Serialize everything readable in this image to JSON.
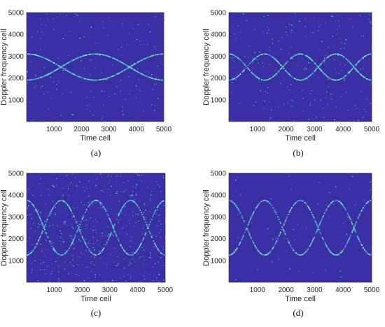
{
  "chart_data": [
    {
      "type": "heatmap",
      "panel_label": "(a)",
      "xlabel": "Time cell",
      "ylabel": "Doppler frequency cell",
      "xlim": [
        0,
        5000
      ],
      "ylim": [
        0,
        5000
      ],
      "xticks": [
        "1000",
        "2000",
        "3000",
        "4000",
        "5000"
      ],
      "yticks": [
        "1000",
        "2000",
        "3000",
        "4000",
        "5000"
      ],
      "background": "#3b2fa6",
      "highlight": "#5cf0c8",
      "curves": [
        {
          "center": 2500,
          "amplitude": 600,
          "period": 5000,
          "phase": 0
        },
        {
          "center": 2500,
          "amplitude": 600,
          "period": 5000,
          "phase": 2500
        }
      ],
      "noise_density": 0.35
    },
    {
      "type": "heatmap",
      "panel_label": "(b)",
      "xlabel": "Time cell",
      "ylabel": "Doppler frequency cell",
      "xlim": [
        0,
        5000
      ],
      "ylim": [
        0,
        5000
      ],
      "xticks": [
        "1000",
        "2000",
        "3000",
        "4000",
        "5000"
      ],
      "yticks": [
        "1000",
        "2000",
        "3000",
        "4000",
        "5000"
      ],
      "background": "#3b2fa6",
      "highlight": "#5cf0c8",
      "curves": [
        {
          "center": 2500,
          "amplitude": 600,
          "period": 2500,
          "phase": 0
        },
        {
          "center": 2500,
          "amplitude": 600,
          "period": 2500,
          "phase": 1250
        }
      ],
      "noise_density": 0.5
    },
    {
      "type": "heatmap",
      "panel_label": "(c)",
      "xlabel": "Time cell",
      "ylabel": "Doppler frequency cell",
      "xlim": [
        0,
        5000
      ],
      "ylim": [
        0,
        5000
      ],
      "xticks": [
        "1000",
        "2000",
        "3000",
        "4000",
        "5000"
      ],
      "yticks": [
        "1000",
        "2000",
        "3000",
        "4000",
        "5000"
      ],
      "background": "#3b2fa6",
      "highlight": "#5cf0c8",
      "curves": [
        {
          "center": 2500,
          "amplitude": 1250,
          "period": 2500,
          "phase": 0
        },
        {
          "center": 2500,
          "amplitude": 1250,
          "period": 2500,
          "phase": 1250
        }
      ],
      "noise_density": 1.0
    },
    {
      "type": "heatmap",
      "panel_label": "(d)",
      "xlabel": "Time cell",
      "ylabel": "Doppler frequency cell",
      "xlim": [
        0,
        5000
      ],
      "ylim": [
        0,
        5000
      ],
      "xticks": [
        "1000",
        "2000",
        "3000",
        "4000",
        "5000"
      ],
      "yticks": [
        "1000",
        "2000",
        "3000",
        "4000",
        "5000"
      ],
      "background": "#3b2fa6",
      "highlight": "#5cf0c8",
      "curves": [
        {
          "center": 2500,
          "amplitude": 1250,
          "period": 2500,
          "phase": 0
        },
        {
          "center": 2500,
          "amplitude": 1250,
          "period": 2500,
          "phase": 1250
        }
      ],
      "noise_density": 0.12
    }
  ]
}
